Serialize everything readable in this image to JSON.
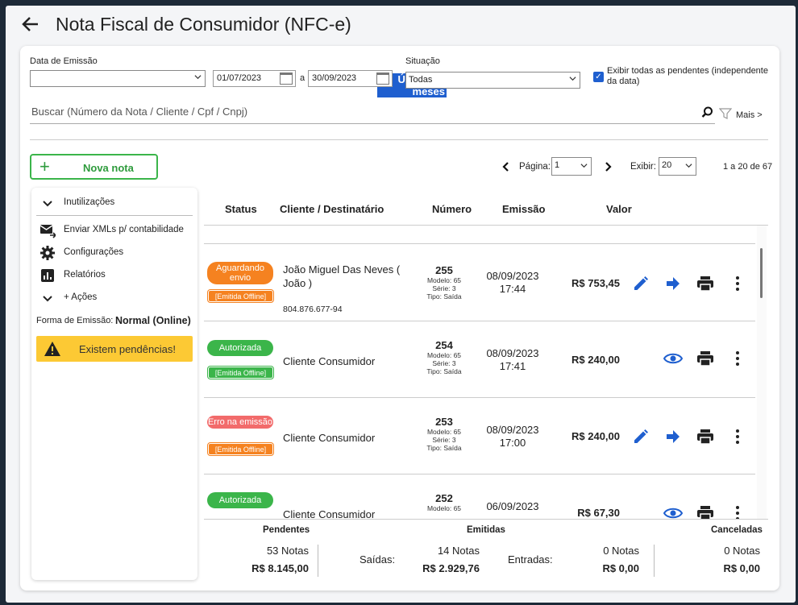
{
  "header": {
    "title": "Nota Fiscal de Consumidor (NFC-e)"
  },
  "filters": {
    "data_emissao_label": "Data de Emissão",
    "periodo_value": "Últimos 3 meses",
    "date_from": "01/07/2023",
    "date_sep": "a",
    "date_to": "30/09/2023",
    "situacao_label": "Situação",
    "situacao_value": "Todas",
    "exibir_pendentes_label": "Exibir todas as pendentes (independente da data)",
    "exibir_pendentes_checked": true,
    "search_placeholder": "Buscar (Número da Nota / Cliente / Cpf / Cnpj)",
    "mais_label": "Mais >"
  },
  "toolbar": {
    "nova_nota_label": "Nova nota",
    "pagina_label": "Página:",
    "pagina_value": "1",
    "exibir_label": "Exibir:",
    "exibir_value": "20",
    "range_text": "1 a 20 de 67"
  },
  "sidebar": {
    "inutilizacoes": "Inutilizações",
    "enviar_xmls": "Enviar XMLs p/ contabilidade",
    "configuracoes": "Configurações",
    "relatorios": "Relatórios",
    "mais_acoes": "+ Ações",
    "forma_emissao_label": "Forma de Emissão:",
    "forma_emissao_value": "Normal (Online)",
    "pendencias_text": "Existem pendências!"
  },
  "table": {
    "columns": {
      "status": "Status",
      "cliente": "Cliente / Destinatário",
      "numero": "Número",
      "emissao": "Emissão",
      "valor": "Valor"
    },
    "rows": [
      {
        "status": "Aguardando envio",
        "status_color": "#f58220",
        "offline": "[Emitida Offline]",
        "cliente": "João Miguel Das Neves ( João )",
        "cpf": "804.876.677-94",
        "numero": "255",
        "modelo": "Modelo: 65",
        "serie": "Série: 3",
        "tipo": "Tipo: Saída",
        "data": "08/09/2023",
        "hora": "17:44",
        "valor": "R$ 753,45"
      },
      {
        "status": "Autorizada",
        "status_color": "#3bb54a",
        "offline": "[Emitida Offline]",
        "cliente": "Cliente Consumidor",
        "cpf": "",
        "numero": "254",
        "modelo": "Modelo: 65",
        "serie": "Série: 3",
        "tipo": "Tipo: Saída",
        "data": "08/09/2023",
        "hora": "17:41",
        "valor": "R$ 240,00"
      },
      {
        "status": "Erro na emissão",
        "status_color": "#f26b6b",
        "offline": "[Emitida Offline]",
        "cliente": "Cliente Consumidor",
        "cpf": "",
        "numero": "253",
        "modelo": "Modelo: 65",
        "serie": "Série: 3",
        "tipo": "Tipo: Saída",
        "data": "08/09/2023",
        "hora": "17:00",
        "valor": "R$ 240,00"
      },
      {
        "status": "Autorizada",
        "status_color": "#3bb54a",
        "offline": "",
        "cliente": "Cliente Consumidor",
        "cpf": "",
        "numero": "252",
        "modelo": "Modelo: 65",
        "serie": "",
        "tipo": "",
        "data": "06/09/2023",
        "hora": "",
        "valor": "R$ 67,30"
      }
    ]
  },
  "footer": {
    "pendentes_label": "Pendentes",
    "pendentes_notas": "53 Notas",
    "pendentes_valor": "R$ 8.145,00",
    "emitidas_label": "Emitidas",
    "saidas_label": "Saídas:",
    "saidas_notas": "14 Notas",
    "saidas_valor": "R$ 2.929,76",
    "entradas_label": "Entradas:",
    "entradas_notas": "0 Notas",
    "entradas_valor": "R$ 0,00",
    "canceladas_label": "Canceladas",
    "canceladas_notas": "0 Notas",
    "canceladas_valor": "R$ 0,00"
  },
  "colors": {
    "accent_blue": "#1f5fcf",
    "green": "#3bb54a",
    "orange": "#f58220",
    "red": "#f26b6b",
    "warning": "#fcc934"
  }
}
